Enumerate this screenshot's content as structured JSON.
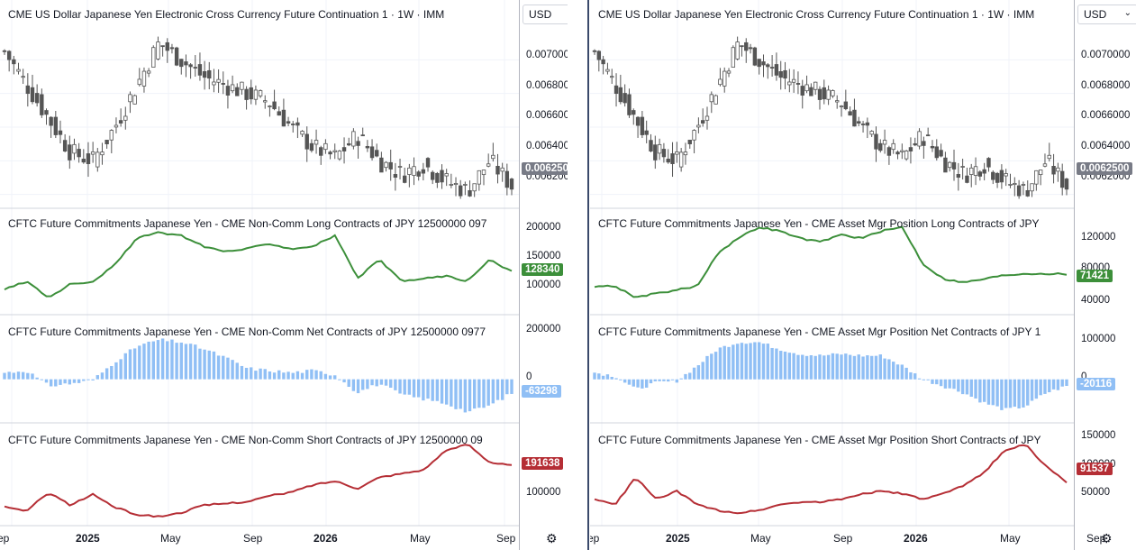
{
  "left": {
    "price_title": "CME US Dollar Japanese Yen Electronic Cross Currency Future Continuation 1 · 1W · IMM",
    "long_title": "CFTC Future Commitments Japanese Yen - CME Non-Comm Long Contracts of JPY 12500000 097",
    "net_title": "CFTC Future Commitments Japanese Yen - CME Non-Comm Net Contracts of JPY 12500000 0977",
    "short_title": "CFTC Future Commitments Japanese Yen - CME Non-Comm Short Contracts of JPY 12500000 09",
    "currency": "USD",
    "price_ticks": [
      "0.0070000",
      "0.0068000",
      "0.0066000",
      "0.0064000",
      "0.0062000"
    ],
    "price_last": "0.0062500",
    "long_ticks": [
      "200000",
      "150000",
      "100000"
    ],
    "long_last": "128340",
    "net_ticks": [
      "200000",
      "0"
    ],
    "net_last": "-63298",
    "short_ticks": [
      "100000"
    ],
    "short_last": "191638",
    "x_labels": [
      "ep",
      "2025",
      "May",
      "Sep",
      "2026",
      "May",
      "Sep"
    ]
  },
  "right": {
    "price_title": "CME US Dollar Japanese Yen Electronic Cross Currency Future Continuation 1 · 1W · IMM",
    "long_title": "CFTC Future Commitments Japanese Yen - CME Asset Mgr Position Long Contracts of JPY",
    "net_title": "CFTC Future Commitments Japanese Yen - CME Asset Mgr Position Net Contracts of JPY 1",
    "short_title": "CFTC Future Commitments Japanese Yen - CME Asset Mgr Position Short Contracts of JPY",
    "currency": "USD",
    "price_ticks": [
      "0.0070000",
      "0.0068000",
      "0.0066000",
      "0.0064000",
      "0.0062000"
    ],
    "price_last": "0.0062500",
    "long_ticks": [
      "120000",
      "80000",
      "40000"
    ],
    "long_last": "71421",
    "net_ticks": [
      "100000",
      "0"
    ],
    "net_last": "-20116",
    "short_ticks": [
      "150000",
      "100000",
      "50000"
    ],
    "short_last": "91537",
    "x_labels": [
      "ep",
      "2025",
      "May",
      "Sep",
      "2026",
      "May",
      "Sep"
    ]
  },
  "colors": {
    "candle": "#555555",
    "long": "#3c8f3a",
    "net": "#90bff5",
    "short": "#b52e35",
    "price_badge": "#787b86"
  },
  "chart_data": [
    {
      "type": "candlestick",
      "title": "CME US Dollar Japanese Yen Electronic Cross Currency Future Continuation 1 · 1W · IMM",
      "x": [
        "2024-09",
        "2024-10",
        "2024-11",
        "2024-12",
        "2025-01",
        "2025-02",
        "2025-03",
        "2025-04",
        "2025-05",
        "2025-06",
        "2025-07",
        "2025-08",
        "2025-09",
        "2025-10",
        "2025-11",
        "2025-12",
        "2026-01",
        "2026-02",
        "2026-03",
        "2026-04",
        "2026-05",
        "2026-06",
        "2026-07",
        "2026-08"
      ],
      "close": [
        0.00705,
        0.00685,
        0.00665,
        0.00645,
        0.0064,
        0.0066,
        0.00685,
        0.0071,
        0.007,
        0.0069,
        0.00685,
        0.0068,
        0.00675,
        0.0066,
        0.00648,
        0.00642,
        0.00655,
        0.0064,
        0.00632,
        0.00638,
        0.00628,
        0.00622,
        0.0064,
        0.00625
      ],
      "ylim": [
        0.00615,
        0.0072
      ]
    },
    {
      "type": "line",
      "title": "CFTC Future Commitments Japanese Yen - CME Non-Comm Long Contracts of JPY 12500000 097",
      "series": [
        {
          "values": [
            95000,
            110000,
            80000,
            105000,
            110000,
            140000,
            190000,
            200000,
            195000,
            175000,
            165000,
            170000,
            180000,
            170000,
            175000,
            195000,
            115000,
            150000,
            110000,
            115000,
            120000,
            110000,
            150000,
            128340
          ]
        }
      ]
    },
    {
      "type": "bar",
      "title": "CFTC Future Commitments Japanese Yen - CME Non-Comm Net Contracts of JPY 12500000 0977",
      "series": [
        {
          "values": [
            30000,
            40000,
            -30000,
            -20000,
            -5000,
            80000,
            150000,
            180000,
            170000,
            140000,
            100000,
            50000,
            40000,
            30000,
            40000,
            20000,
            -60000,
            -20000,
            -70000,
            -90000,
            -110000,
            -150000,
            -120000,
            -63298
          ]
        }
      ]
    },
    {
      "type": "line",
      "title": "CFTC Future Commitments Japanese Yen - CME Non-Comm Short Contracts of JPY 12500000 09",
      "series": [
        {
          "values": [
            80000,
            70000,
            120000,
            85000,
            115000,
            80000,
            60000,
            55000,
            65000,
            85000,
            90000,
            95000,
            110000,
            120000,
            140000,
            150000,
            130000,
            160000,
            170000,
            180000,
            230000,
            250000,
            200000,
            191638
          ]
        }
      ]
    },
    {
      "type": "line",
      "title": "CFTC Future Commitments Japanese Yen - CME Asset Mgr Position Long Contracts of JPY",
      "series": [
        {
          "values": [
            55000,
            55000,
            40000,
            45000,
            50000,
            55000,
            100000,
            120000,
            135000,
            130000,
            120000,
            115000,
            125000,
            120000,
            130000,
            135000,
            85000,
            65000,
            60000,
            65000,
            70000,
            72000,
            72000,
            71421
          ]
        }
      ]
    },
    {
      "type": "bar",
      "title": "CFTC Future Commitments Japanese Yen - CME Asset Mgr Position Net Contracts of JPY 1",
      "series": [
        {
          "values": [
            20000,
            10000,
            -30000,
            -10000,
            -5000,
            40000,
            90000,
            110000,
            110000,
            90000,
            75000,
            70000,
            75000,
            70000,
            70000,
            40000,
            0,
            -20000,
            -40000,
            -70000,
            -90000,
            -80000,
            -40000,
            -20116
          ]
        }
      ]
    },
    {
      "type": "line",
      "title": "CFTC Future Commitments Japanese Yen - CME Asset Mgr Position Short Contracts of JPY",
      "series": [
        {
          "values": [
            60000,
            50000,
            100000,
            60000,
            75000,
            50000,
            40000,
            35000,
            40000,
            50000,
            55000,
            55000,
            60000,
            70000,
            75000,
            70000,
            60000,
            70000,
            85000,
            110000,
            150000,
            160000,
            120000,
            91537
          ]
        }
      ]
    }
  ]
}
